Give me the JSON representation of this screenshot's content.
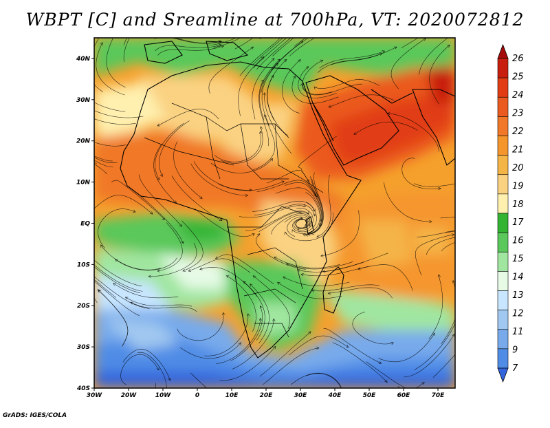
{
  "title": "WBPT [C] and Sreamline at 700hPa, VT: 2020072812",
  "footer": "GrADS: IGES/COLA",
  "map": {
    "projection": "lat-lon",
    "region": "Africa, Arabia and western Indian Ocean",
    "longitude_range": [
      "30W",
      "75E"
    ],
    "latitude_range": [
      "40S",
      "45N"
    ],
    "x_tick_labels": [
      "30W",
      "20W",
      "10W",
      "0",
      "10E",
      "20E",
      "30E",
      "40E",
      "50E",
      "60E",
      "70E"
    ],
    "y_tick_labels": [
      "40N",
      "30N",
      "20N",
      "10N",
      "EQ",
      "10S",
      "20S",
      "30S",
      "40S"
    ],
    "overlays": [
      "shaded wet-bulb potential temperature",
      "streamlines",
      "country borders",
      "coastlines"
    ]
  },
  "colorbar": {
    "labels": [
      "26",
      "25",
      "24",
      "23",
      "22",
      "21",
      "20",
      "19",
      "18",
      "17",
      "16",
      "15",
      "14",
      "13",
      "12",
      "11",
      "9",
      "7"
    ],
    "colors": [
      "#a50a0a",
      "#c81e0f",
      "#e13c14",
      "#eb5a1e",
      "#f07828",
      "#f5962d",
      "#f5b446",
      "#fad282",
      "#fff0af",
      "#32b432",
      "#5ac85a",
      "#a0e6a0",
      "#e6fae6",
      "#c8e6ff",
      "#a0c8f0",
      "#78aaeb",
      "#508ce6",
      "#3264dc"
    ]
  }
}
